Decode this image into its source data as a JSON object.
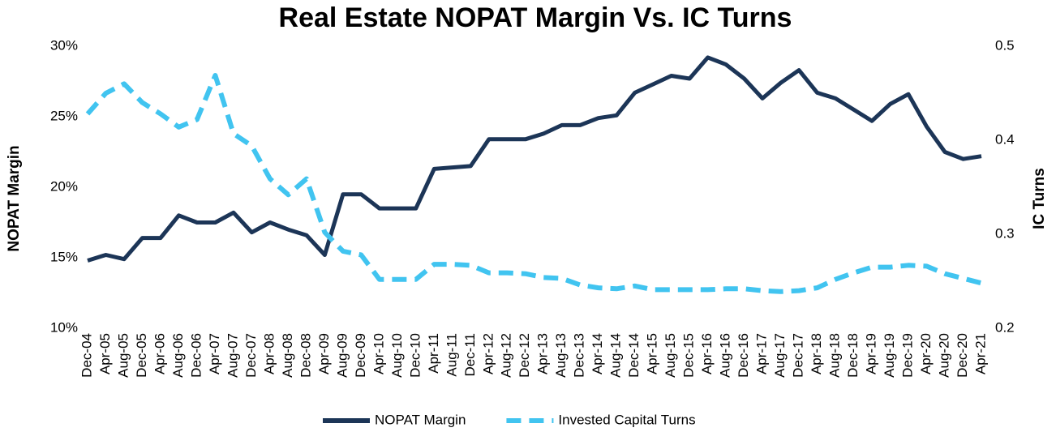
{
  "chart_data": {
    "type": "line",
    "title": "Real Estate NOPAT Margin Vs. IC Turns",
    "y_label": "NOPAT Margin",
    "y2_label": "IC Turns",
    "categories": [
      "Dec-04",
      "Apr-05",
      "Aug-05",
      "Dec-05",
      "Apr-06",
      "Aug-06",
      "Dec-06",
      "Apr-07",
      "Aug-07",
      "Dec-07",
      "Apr-08",
      "Aug-08",
      "Dec-08",
      "Apr-09",
      "Aug-09",
      "Dec-09",
      "Apr-10",
      "Aug-10",
      "Dec-10",
      "Apr-11",
      "Aug-11",
      "Dec-11",
      "Apr-12",
      "Aug-12",
      "Dec-12",
      "Apr-13",
      "Aug-13",
      "Dec-13",
      "Apr-14",
      "Aug-14",
      "Dec-14",
      "Apr-15",
      "Aug-15",
      "Dec-15",
      "Apr-16",
      "Aug-16",
      "Dec-16",
      "Apr-17",
      "Aug-17",
      "Dec-17",
      "Apr-18",
      "Aug-18",
      "Dec-18",
      "Apr-19",
      "Aug-19",
      "Dec-19",
      "Apr-20",
      "Aug-20",
      "Dec-20",
      "Apr-21"
    ],
    "series": [
      {
        "name": "NOPAT Margin",
        "color": "#1c3557",
        "dash": false,
        "values": [
          14.8,
          15.2,
          14.9,
          16.4,
          16.4,
          18.0,
          17.5,
          17.5,
          18.2,
          16.8,
          17.5,
          17.0,
          16.6,
          15.2,
          19.5,
          19.5,
          18.5,
          18.5,
          18.5,
          21.3,
          21.4,
          21.5,
          23.4,
          23.4,
          23.4,
          23.8,
          24.4,
          24.4,
          24.9,
          25.1,
          26.7,
          27.3,
          27.9,
          27.7,
          29.2,
          28.7,
          27.7,
          26.3,
          27.4,
          28.3,
          26.7,
          26.3,
          25.5,
          24.7,
          25.9,
          26.6,
          24.3,
          22.5,
          22.0,
          22.2
        ]
      },
      {
        "name": "Invested Capital Turns",
        "color": "#41c4f0",
        "dash": true,
        "axis": "y2",
        "values": [
          0.428,
          0.45,
          0.46,
          0.44,
          0.428,
          0.414,
          0.422,
          0.469,
          0.407,
          0.394,
          0.359,
          0.342,
          0.359,
          0.302,
          0.282,
          0.278,
          0.252,
          0.252,
          0.252,
          0.268,
          0.268,
          0.267,
          0.259,
          0.259,
          0.258,
          0.254,
          0.253,
          0.246,
          0.243,
          0.242,
          0.245,
          0.241,
          0.241,
          0.241,
          0.241,
          0.242,
          0.242,
          0.24,
          0.239,
          0.24,
          0.243,
          0.252,
          0.259,
          0.265,
          0.265,
          0.267,
          0.266,
          0.258,
          0.253,
          0.248
        ]
      }
    ],
    "ylim": [
      10,
      30
    ],
    "yticks": [
      {
        "value": 10,
        "label": "10%"
      },
      {
        "value": 15,
        "label": "15%"
      },
      {
        "value": 20,
        "label": "20%"
      },
      {
        "value": 25,
        "label": "25%"
      },
      {
        "value": 30,
        "label": "30%"
      }
    ],
    "y2lim": [
      0.2,
      0.5
    ],
    "y2ticks": [
      0.2,
      0.3,
      0.4,
      0.5
    ],
    "grid": false,
    "legend": "bottom"
  }
}
